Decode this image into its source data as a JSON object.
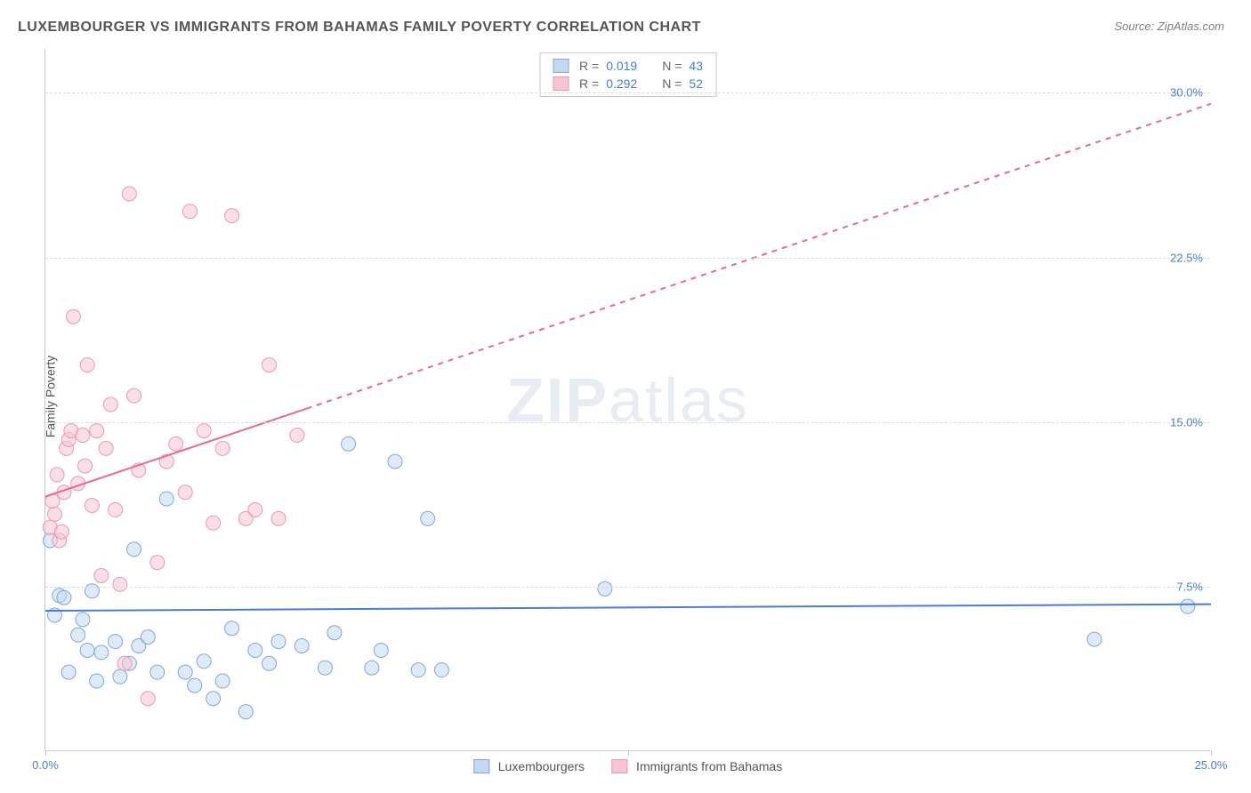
{
  "title": "LUXEMBOURGER VS IMMIGRANTS FROM BAHAMAS FAMILY POVERTY CORRELATION CHART",
  "source": "Source: ZipAtlas.com",
  "watermark": "ZIPatlas",
  "y_axis_label": "Family Poverty",
  "chart": {
    "type": "scatter",
    "xlim": [
      0,
      25
    ],
    "ylim": [
      0,
      32
    ],
    "y_gridlines": [
      7.5,
      15.0,
      22.5,
      30.0
    ],
    "y_tick_labels": [
      "7.5%",
      "15.0%",
      "22.5%",
      "30.0%"
    ],
    "x_ticks": [
      0,
      12.5,
      25
    ],
    "x_tick_labels": [
      "0.0%",
      "",
      "25.0%"
    ],
    "background_color": "#ffffff",
    "grid_color": "#dcdcdc",
    "axis_color": "#c9c9c9",
    "marker_radius": 8,
    "series": [
      {
        "name": "Luxembourgers",
        "fill": "#c5d8f0",
        "stroke": "#7ea9de",
        "fill_opacity": 0.55,
        "r_value": "0.019",
        "n_value": "43",
        "trend": {
          "x1": 0,
          "y1": 6.4,
          "x2": 25,
          "y2": 6.7,
          "solid_until_x": 25,
          "color": "#4a7dd1",
          "width": 2
        },
        "points": [
          [
            0.1,
            9.6
          ],
          [
            0.2,
            6.2
          ],
          [
            0.3,
            7.1
          ],
          [
            0.4,
            7.0
          ],
          [
            0.5,
            3.6
          ],
          [
            0.7,
            5.3
          ],
          [
            0.8,
            6.0
          ],
          [
            0.9,
            4.6
          ],
          [
            1.0,
            7.3
          ],
          [
            1.1,
            3.2
          ],
          [
            1.2,
            4.5
          ],
          [
            1.5,
            5.0
          ],
          [
            1.6,
            3.4
          ],
          [
            1.8,
            4.0
          ],
          [
            1.9,
            9.2
          ],
          [
            2.0,
            4.8
          ],
          [
            2.2,
            5.2
          ],
          [
            2.4,
            3.6
          ],
          [
            2.6,
            11.5
          ],
          [
            3.0,
            3.6
          ],
          [
            3.2,
            3.0
          ],
          [
            3.4,
            4.1
          ],
          [
            3.6,
            2.4
          ],
          [
            3.8,
            3.2
          ],
          [
            4.0,
            5.6
          ],
          [
            4.3,
            1.8
          ],
          [
            4.5,
            4.6
          ],
          [
            4.8,
            4.0
          ],
          [
            5.0,
            5.0
          ],
          [
            5.5,
            4.8
          ],
          [
            6.0,
            3.8
          ],
          [
            6.2,
            5.4
          ],
          [
            6.5,
            14.0
          ],
          [
            7.0,
            3.8
          ],
          [
            7.2,
            4.6
          ],
          [
            7.5,
            13.2
          ],
          [
            8.0,
            3.7
          ],
          [
            8.2,
            10.6
          ],
          [
            8.5,
            3.7
          ],
          [
            12.0,
            7.4
          ],
          [
            22.5,
            5.1
          ],
          [
            24.5,
            6.6
          ]
        ]
      },
      {
        "name": "Immigrants from Bahamas",
        "fill": "#f6c4d2",
        "stroke": "#ea9ab2",
        "fill_opacity": 0.55,
        "r_value": "0.292",
        "n_value": "52",
        "trend": {
          "x1": 0,
          "y1": 11.6,
          "x2": 25,
          "y2": 29.5,
          "solid_until_x": 5.6,
          "color": "#e76a93",
          "width": 2
        },
        "points": [
          [
            0.1,
            10.2
          ],
          [
            0.15,
            11.4
          ],
          [
            0.2,
            10.8
          ],
          [
            0.25,
            12.6
          ],
          [
            0.3,
            9.6
          ],
          [
            0.35,
            10.0
          ],
          [
            0.4,
            11.8
          ],
          [
            0.45,
            13.8
          ],
          [
            0.5,
            14.2
          ],
          [
            0.55,
            14.6
          ],
          [
            0.6,
            19.8
          ],
          [
            0.7,
            12.2
          ],
          [
            0.8,
            14.4
          ],
          [
            0.85,
            13.0
          ],
          [
            0.9,
            17.6
          ],
          [
            1.0,
            11.2
          ],
          [
            1.1,
            14.6
          ],
          [
            1.2,
            8.0
          ],
          [
            1.3,
            13.8
          ],
          [
            1.4,
            15.8
          ],
          [
            1.5,
            11.0
          ],
          [
            1.6,
            7.6
          ],
          [
            1.7,
            4.0
          ],
          [
            1.8,
            25.4
          ],
          [
            1.9,
            16.2
          ],
          [
            2.0,
            12.8
          ],
          [
            2.2,
            2.4
          ],
          [
            2.4,
            8.6
          ],
          [
            2.6,
            13.2
          ],
          [
            2.8,
            14.0
          ],
          [
            3.0,
            11.8
          ],
          [
            3.1,
            24.6
          ],
          [
            3.4,
            14.6
          ],
          [
            3.6,
            10.4
          ],
          [
            3.8,
            13.8
          ],
          [
            4.0,
            24.4
          ],
          [
            4.3,
            10.6
          ],
          [
            4.5,
            11.0
          ],
          [
            4.8,
            17.6
          ],
          [
            5.0,
            10.6
          ],
          [
            5.4,
            14.4
          ]
        ]
      }
    ],
    "legend_labels": {
      "r": "R =",
      "n": "N ="
    }
  }
}
